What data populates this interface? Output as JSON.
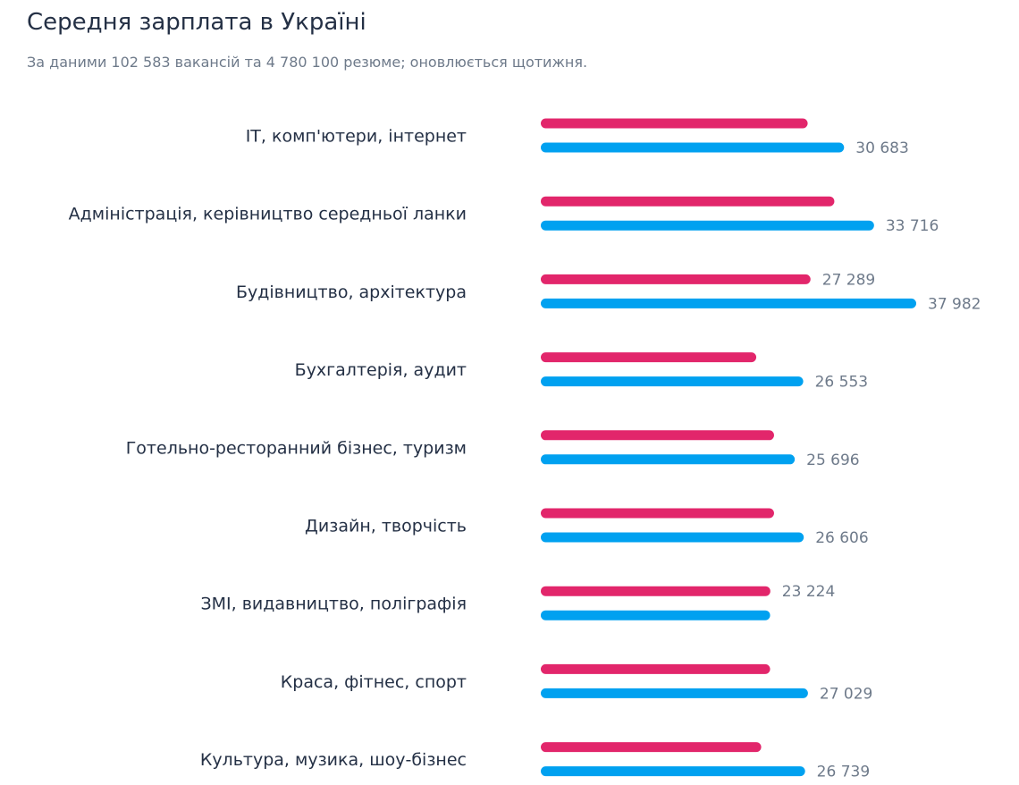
{
  "header": {
    "title": "Середня зарплата в Україні",
    "subtitle": "За даними 102 583 вакансій та 4 780 100 резюме; оновлюється щотижня."
  },
  "colors": {
    "series_a": "#e2266b",
    "series_b": "#00a1f0",
    "label": "#243045",
    "value": "#6e7a8a"
  },
  "chart_data": {
    "type": "bar",
    "orientation": "horizontal",
    "grid": false,
    "legend": "none",
    "xlim": [
      0,
      40000
    ],
    "categories": [
      "IT, комп'ютери, інтернет",
      "Адміністрація, керівництво середньої ланки",
      "Будівництво, архітектура",
      "Бухгалтерія, аудит",
      "Готельно-ресторанний бізнес, туризм",
      "Дизайн, творчість",
      "ЗМІ, видавництво, поліграфія",
      "Краса, фітнес, спорт",
      "Культура, музика, шоу-бізнес"
    ],
    "series": [
      {
        "color": "#e2266b",
        "values": [
          27000,
          29700,
          27289,
          21800,
          23600,
          23600,
          23224,
          23200,
          22300
        ],
        "labels": [
          "",
          "",
          "27 289",
          "",
          "",
          "",
          "23 224",
          "",
          ""
        ]
      },
      {
        "color": "#00a1f0",
        "values": [
          30683,
          33716,
          37982,
          26553,
          25696,
          26606,
          23200,
          27029,
          26739
        ],
        "labels": [
          "30 683",
          "33 716",
          "37 982",
          "26 553",
          "25 696",
          "26 606",
          "",
          "27 029",
          "26 739"
        ]
      }
    ]
  }
}
